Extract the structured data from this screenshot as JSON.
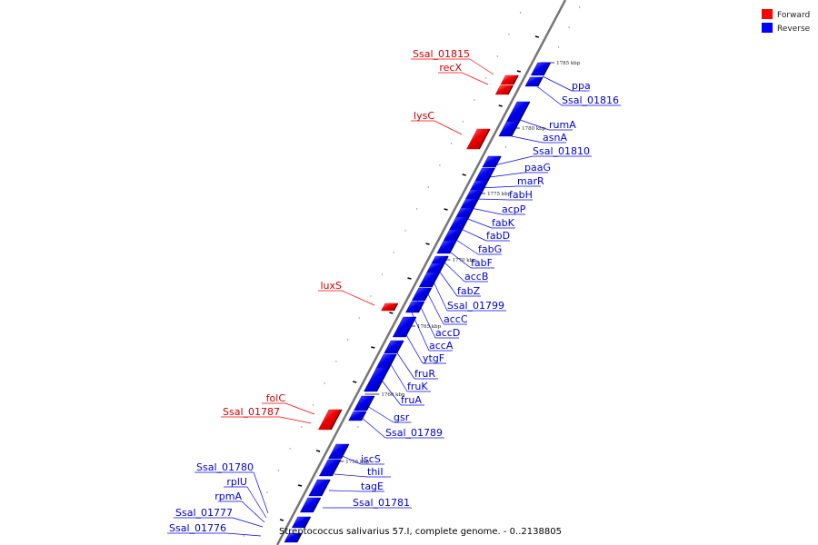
{
  "caption": "Streptococcus salivarius 57.I, complete genome. - 0..2138805",
  "legend": [
    {
      "label": "Forward",
      "color": "#ff0000"
    },
    {
      "label": "Reverse",
      "color": "#0000ff"
    }
  ],
  "colors": {
    "forward": "#ff0000",
    "reverse": "#0000ff",
    "forward_label": "#cc0000",
    "reverse_label": "#0000cc",
    "backbone": "#777777"
  },
  "tick_labels": [
    "1785 kbp",
    "1780 kbp",
    "1775 kbp",
    "1770 kbp",
    "1765 kbp",
    "1760 kbp",
    "1755 kbp"
  ],
  "forward_genes": [
    "Ssal_01815",
    "recX",
    "lysC",
    "luxS",
    "folC",
    "Ssal_01787"
  ],
  "reverse_genes": [
    "ppa",
    "Ssal_01816",
    "rumA",
    "asnA",
    "Ssal_01810",
    "paaG",
    "marR",
    "fabH",
    "acpP",
    "fabK",
    "fabD",
    "fabG",
    "fabF",
    "accB",
    "fabZ",
    "Ssal_01799",
    "accC",
    "accD",
    "accA",
    "ytgF",
    "fruR",
    "fruK",
    "fruA",
    "gsr",
    "Ssal_01789",
    "iscS",
    "thiI",
    "tagE",
    "Ssal_01781",
    "Ssal_01780",
    "rplU",
    "rpmA",
    "Ssal_01777",
    "Ssal_01776"
  ]
}
